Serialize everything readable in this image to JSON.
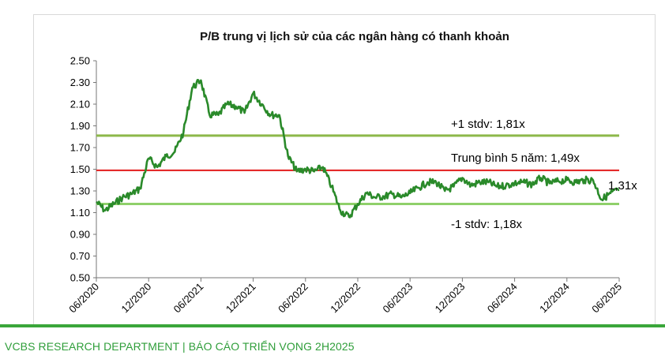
{
  "footer": {
    "text": "VCBS RESEARCH DEPARTMENT | BÁO CÁO TRIỂN VỌNG 2H2025"
  },
  "chart_data": {
    "type": "line",
    "title": "P/B trung vị lịch sử của các ngân hàng có thanh khoản",
    "xlabel": "",
    "ylabel": "",
    "ylim": [
      0.5,
      2.5
    ],
    "yticks": [
      "0.50",
      "0.70",
      "0.90",
      "1.10",
      "1.30",
      "1.50",
      "1.70",
      "1.90",
      "2.10",
      "2.30",
      "2.50"
    ],
    "xticks": [
      "06/2020",
      "12/2020",
      "06/2021",
      "12/2021",
      "06/2022",
      "12/2022",
      "06/2023",
      "12/2023",
      "06/2024",
      "12/2024",
      "06/2025"
    ],
    "grid": false,
    "series": [
      {
        "name": "",
        "color": "#2a8a2a",
        "points": [
          [
            "06/2020",
            1.2
          ],
          [
            "07/2020",
            1.12
          ],
          [
            "08/2020",
            1.18
          ],
          [
            "09/2020",
            1.24
          ],
          [
            "10/2020",
            1.27
          ],
          [
            "11/2020",
            1.32
          ],
          [
            "12/2020",
            1.6
          ],
          [
            "01/2021",
            1.52
          ],
          [
            "02/2021",
            1.62
          ],
          [
            "03/2021",
            1.66
          ],
          [
            "04/2021",
            1.84
          ],
          [
            "05/2021",
            2.25
          ],
          [
            "06/2021",
            2.32
          ],
          [
            "07/2021",
            2.0
          ],
          [
            "08/2021",
            2.0
          ],
          [
            "09/2021",
            2.1
          ],
          [
            "10/2021",
            2.08
          ],
          [
            "11/2021",
            2.02
          ],
          [
            "12/2021",
            2.2
          ],
          [
            "01/2022",
            2.1
          ],
          [
            "02/2022",
            2.0
          ],
          [
            "03/2022",
            2.0
          ],
          [
            "04/2022",
            1.62
          ],
          [
            "05/2022",
            1.48
          ],
          [
            "06/2022",
            1.5
          ],
          [
            "07/2022",
            1.48
          ],
          [
            "08/2022",
            1.52
          ],
          [
            "09/2022",
            1.34
          ],
          [
            "10/2022",
            1.12
          ],
          [
            "11/2022",
            1.06
          ],
          [
            "12/2022",
            1.18
          ],
          [
            "01/2023",
            1.28
          ],
          [
            "02/2023",
            1.24
          ],
          [
            "03/2023",
            1.25
          ],
          [
            "04/2023",
            1.27
          ],
          [
            "05/2023",
            1.24
          ],
          [
            "06/2023",
            1.28
          ],
          [
            "07/2023",
            1.33
          ],
          [
            "08/2023",
            1.38
          ],
          [
            "09/2023",
            1.38
          ],
          [
            "10/2023",
            1.3
          ],
          [
            "11/2023",
            1.34
          ],
          [
            "12/2023",
            1.42
          ],
          [
            "01/2024",
            1.35
          ],
          [
            "02/2024",
            1.38
          ],
          [
            "03/2024",
            1.38
          ],
          [
            "04/2024",
            1.34
          ],
          [
            "05/2024",
            1.35
          ],
          [
            "06/2024",
            1.37
          ],
          [
            "07/2024",
            1.38
          ],
          [
            "08/2024",
            1.36
          ],
          [
            "09/2024",
            1.42
          ],
          [
            "10/2024",
            1.37
          ],
          [
            "11/2024",
            1.39
          ],
          [
            "12/2024",
            1.4
          ],
          [
            "01/2025",
            1.38
          ],
          [
            "02/2025",
            1.4
          ],
          [
            "03/2025",
            1.4
          ],
          [
            "04/2025",
            1.22
          ],
          [
            "05/2025",
            1.28
          ],
          [
            "06/2025",
            1.31
          ]
        ]
      }
    ],
    "reference_lines": [
      {
        "label": "+1 stdv: 1,81x",
        "value": 1.81,
        "color": "#8db84a"
      },
      {
        "label": "Trung bình 5 năm: 1,49x",
        "value": 1.49,
        "color": "#e21c1c"
      },
      {
        "label": "-1 stdv: 1,18x",
        "value": 1.18,
        "color": "#8fd06a"
      }
    ],
    "last_value_label": "1,31x"
  }
}
